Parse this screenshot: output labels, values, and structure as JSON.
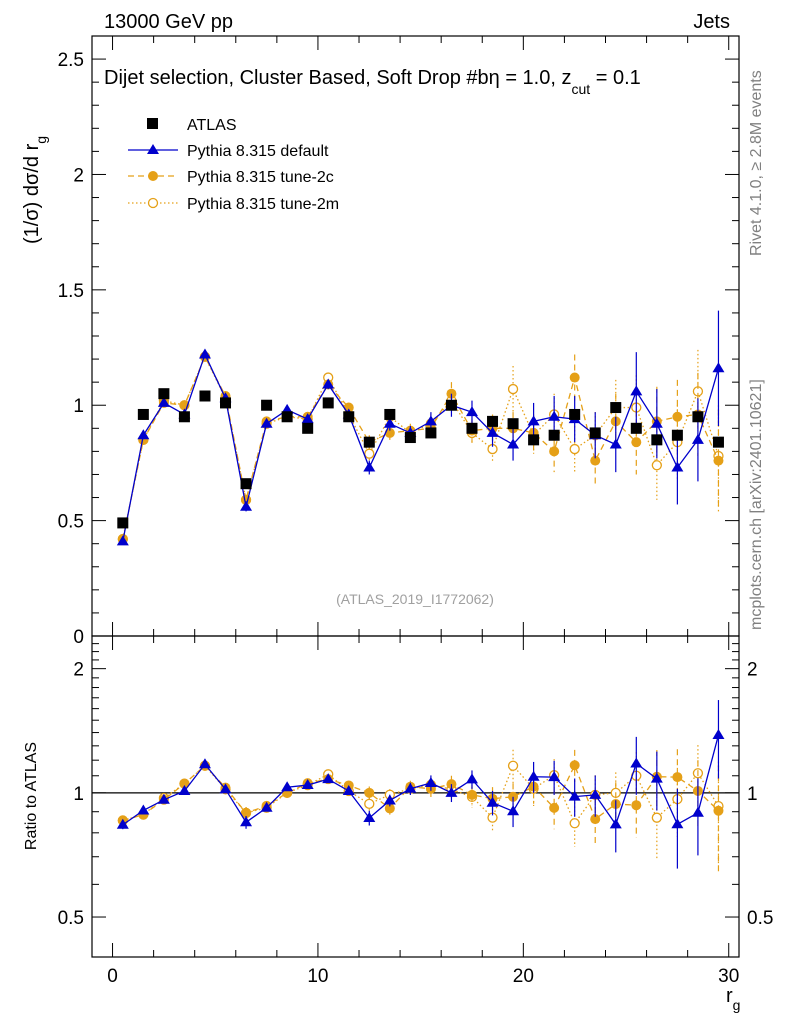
{
  "header": {
    "left": "13000 GeV pp",
    "right": "Jets"
  },
  "main_panel": {
    "title": "Dijet selection, Cluster Based, Soft Drop #b",
    "title_suffix_a": "η = 1.0, z",
    "title_sub": "cut",
    "title_suffix_b": " = 0.1",
    "ylabel_main": "(1/σ) dσ/d r",
    "ylabel_sub": "g",
    "watermark": "(ATLAS_2019_I1772062)",
    "yticks": [
      0,
      0.5,
      1,
      1.5,
      2,
      2.5
    ],
    "ytick_labels": [
      "0",
      "0.5",
      "1",
      "1.5",
      "2",
      "2.5"
    ]
  },
  "ratio_panel": {
    "ylabel": "Ratio to ATLAS",
    "ytick_labels": [
      "0.5",
      "1",
      "2"
    ]
  },
  "xaxis": {
    "label_main": "r",
    "label_sub": "g",
    "tick_labels": [
      "0",
      "10",
      "20",
      "30"
    ]
  },
  "side_text": {
    "rivet": "Rivet 4.1.0, ≥ 2.8M events",
    "mcplots": "mcplots.cern.ch [arXiv:2401.10621]"
  },
  "legend": {
    "atlas": "ATLAS",
    "default": "Pythia 8.315 default",
    "tune2c": "Pythia 8.315 tune-2c",
    "tune2m": "Pythia 8.315 tune-2m"
  },
  "colors": {
    "atlas": "#000000",
    "default": "#0000cc",
    "tune": "#e5a017"
  },
  "chart_data": {
    "type": "scatter",
    "xlim": [
      -1,
      30.5
    ],
    "ylim_main": [
      0,
      2.6
    ],
    "ylim_ratio": [
      0.4,
      2.4
    ],
    "ratio_scale": "log",
    "x": [
      0.5,
      1.5,
      2.5,
      3.5,
      4.5,
      5.5,
      6.5,
      7.5,
      8.5,
      9.5,
      10.5,
      11.5,
      12.5,
      13.5,
      14.5,
      15.5,
      16.5,
      17.5,
      18.5,
      19.5,
      20.5,
      21.5,
      22.5,
      23.5,
      24.5,
      25.5,
      26.5,
      27.5,
      28.5,
      29.5
    ],
    "series": [
      {
        "name": "ATLAS",
        "values": [
          0.49,
          0.96,
          1.05,
          0.95,
          1.04,
          1.01,
          0.66,
          1.0,
          0.95,
          0.9,
          1.01,
          0.95,
          0.84,
          0.96,
          0.86,
          0.88,
          1.0,
          0.9,
          0.93,
          0.92,
          0.85,
          0.87,
          0.96,
          0.88,
          0.99,
          0.9,
          0.85,
          0.87,
          0.95,
          0.84
        ],
        "errors": [
          0.01,
          0.01,
          0.01,
          0.01,
          0.01,
          0.01,
          0.01,
          0.01,
          0.01,
          0.01,
          0.01,
          0.01,
          0.01,
          0.01,
          0.01,
          0.01,
          0.01,
          0.01,
          0.01,
          0.01,
          0.01,
          0.01,
          0.01,
          0.01,
          0.01,
          0.01,
          0.01,
          0.01,
          0.01,
          0.01
        ]
      },
      {
        "name": "Pythia 8.315 default",
        "values": [
          0.41,
          0.87,
          1.01,
          0.96,
          1.22,
          1.03,
          0.56,
          0.92,
          0.98,
          0.94,
          1.09,
          0.96,
          0.73,
          0.92,
          0.88,
          0.93,
          1.0,
          0.97,
          0.88,
          0.83,
          0.93,
          0.95,
          0.94,
          0.87,
          0.83,
          1.06,
          0.92,
          0.73,
          0.85,
          1.16
        ],
        "errors": [
          0.01,
          0.01,
          0.01,
          0.01,
          0.01,
          0.01,
          0.02,
          0.01,
          0.01,
          0.02,
          0.02,
          0.02,
          0.03,
          0.03,
          0.03,
          0.04,
          0.05,
          0.05,
          0.06,
          0.07,
          0.08,
          0.09,
          0.1,
          0.1,
          0.12,
          0.17,
          0.15,
          0.16,
          0.18,
          0.25
        ]
      },
      {
        "name": "Pythia 8.315 tune-2c",
        "values": [
          0.42,
          0.85,
          1.01,
          1.0,
          1.21,
          1.04,
          0.59,
          0.93,
          0.95,
          0.95,
          1.09,
          0.99,
          0.84,
          0.88,
          0.89,
          0.9,
          1.05,
          0.89,
          0.9,
          0.9,
          0.88,
          0.8,
          1.12,
          0.76,
          0.93,
          0.84,
          0.93,
          0.95,
          0.96,
          0.76
        ],
        "errors": [
          0.01,
          0.01,
          0.01,
          0.01,
          0.01,
          0.01,
          0.02,
          0.01,
          0.01,
          0.02,
          0.02,
          0.02,
          0.03,
          0.03,
          0.03,
          0.04,
          0.05,
          0.05,
          0.06,
          0.07,
          0.08,
          0.09,
          0.1,
          0.1,
          0.12,
          0.14,
          0.15,
          0.16,
          0.18,
          0.22
        ]
      },
      {
        "name": "Pythia 8.315 tune-2m",
        "values": [
          0.42,
          0.85,
          1.02,
          1.0,
          1.21,
          1.03,
          0.59,
          0.92,
          0.95,
          0.94,
          1.12,
          0.96,
          0.79,
          0.95,
          0.88,
          0.92,
          1.02,
          0.88,
          0.81,
          1.07,
          0.87,
          0.96,
          0.81,
          0.87,
          0.99,
          0.99,
          0.74,
          0.84,
          1.06,
          0.78
        ],
        "errors": [
          0.01,
          0.01,
          0.01,
          0.01,
          0.01,
          0.01,
          0.02,
          0.01,
          0.01,
          0.02,
          0.02,
          0.02,
          0.03,
          0.03,
          0.03,
          0.04,
          0.05,
          0.05,
          0.06,
          0.1,
          0.08,
          0.09,
          0.1,
          0.1,
          0.12,
          0.14,
          0.15,
          0.16,
          0.18,
          0.22
        ]
      }
    ]
  }
}
